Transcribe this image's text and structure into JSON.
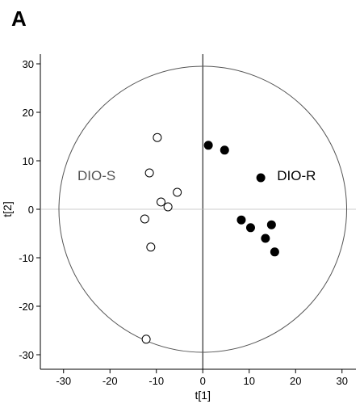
{
  "panel_letter": "A",
  "chart_data": {
    "type": "scatter",
    "title": "",
    "xlabel": "t[1]",
    "ylabel": "t[2]",
    "xlim": [
      -35,
      33
    ],
    "ylim": [
      -33,
      32
    ],
    "xticks": [
      -30,
      -20,
      -10,
      0,
      10,
      20,
      30
    ],
    "yticks": [
      -30,
      -20,
      -10,
      0,
      10,
      20,
      30
    ],
    "grid": false,
    "ellipse": {
      "center": [
        0,
        0
      ],
      "rx": 31,
      "ry": 29.5
    },
    "annotations": [
      {
        "text": "DIO-S",
        "x": -27,
        "y": 6,
        "color": "#555555"
      },
      {
        "text": "DIO-R",
        "x": 16,
        "y": 6,
        "color": "#000000"
      }
    ],
    "series": [
      {
        "name": "DIO-S",
        "marker": "open-circle",
        "points": [
          [
            -9.8,
            14.8
          ],
          [
            -11.5,
            7.5
          ],
          [
            -9,
            1.5
          ],
          [
            -7.5,
            0.5
          ],
          [
            -5.5,
            3.5
          ],
          [
            -12.5,
            -2
          ],
          [
            -11.2,
            -7.8
          ],
          [
            -12.2,
            -26.8
          ]
        ]
      },
      {
        "name": "DIO-R",
        "marker": "filled-circle",
        "points": [
          [
            1.2,
            13.2
          ],
          [
            4.7,
            12.2
          ],
          [
            12.5,
            6.5
          ],
          [
            8.3,
            -2.2
          ],
          [
            10.3,
            -3.8
          ],
          [
            14.8,
            -3.2
          ],
          [
            13.5,
            -6
          ],
          [
            15.5,
            -8.8
          ]
        ]
      }
    ]
  }
}
